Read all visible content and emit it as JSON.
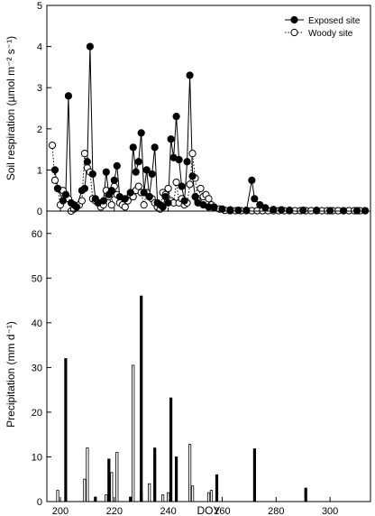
{
  "chart_data": [
    {
      "type": "line",
      "panel": "top",
      "ylabel": "Soil respiration (µmol m⁻² s⁻¹)",
      "ylim": [
        0,
        5
      ],
      "yticks": [
        0,
        1,
        2,
        3,
        4,
        5
      ],
      "xlim": [
        195,
        315
      ],
      "legend": "top-right",
      "series": [
        {
          "name": "Exposed site",
          "marker": "filled-circle",
          "line": "solid",
          "points": [
            [
              198,
              1.0
            ],
            [
              199,
              0.55
            ],
            [
              201,
              0.25
            ],
            [
              202,
              0.4
            ],
            [
              203,
              2.8
            ],
            [
              204,
              0.2
            ],
            [
              205,
              0.15
            ],
            [
              206,
              0.1
            ],
            [
              208,
              0.5
            ],
            [
              209,
              0.55
            ],
            [
              210,
              1.2
            ],
            [
              211,
              4.0
            ],
            [
              212,
              0.9
            ],
            [
              213,
              0.3
            ],
            [
              214,
              0.2
            ],
            [
              216,
              0.25
            ],
            [
              217,
              0.95
            ],
            [
              218,
              0.4
            ],
            [
              219,
              0.5
            ],
            [
              220,
              0.75
            ],
            [
              221,
              1.1
            ],
            [
              222,
              0.35
            ],
            [
              224,
              0.3
            ],
            [
              226,
              0.45
            ],
            [
              227,
              1.55
            ],
            [
              228,
              0.95
            ],
            [
              229,
              1.2
            ],
            [
              230,
              1.9
            ],
            [
              231,
              0.45
            ],
            [
              232,
              1.0
            ],
            [
              233,
              0.35
            ],
            [
              234,
              0.9
            ],
            [
              235,
              1.55
            ],
            [
              236,
              0.2
            ],
            [
              237,
              0.15
            ],
            [
              238,
              0.1
            ],
            [
              239,
              0.35
            ],
            [
              240,
              0.2
            ],
            [
              241,
              1.75
            ],
            [
              242,
              1.3
            ],
            [
              243,
              2.3
            ],
            [
              244,
              1.25
            ],
            [
              245,
              0.6
            ],
            [
              246,
              0.25
            ],
            [
              247,
              1.2
            ],
            [
              248,
              3.3
            ],
            [
              249,
              0.85
            ],
            [
              250,
              0.35
            ],
            [
              251,
              0.2
            ],
            [
              253,
              0.15
            ],
            [
              255,
              0.1
            ],
            [
              257,
              0.08
            ],
            [
              260,
              0.05
            ],
            [
              263,
              0.03
            ],
            [
              266,
              0.02
            ],
            [
              269,
              0.02
            ],
            [
              271,
              0.75
            ],
            [
              272,
              0.3
            ],
            [
              274,
              0.15
            ],
            [
              276,
              0.08
            ],
            [
              279,
              0.04
            ],
            [
              282,
              0.03
            ],
            [
              285,
              0.02
            ],
            [
              290,
              0.02
            ],
            [
              295,
              0.02
            ],
            [
              300,
              0.01
            ],
            [
              305,
              0.01
            ],
            [
              310,
              0.01
            ],
            [
              313,
              0.01
            ]
          ]
        },
        {
          "name": "Woody site",
          "marker": "open-circle",
          "line": "dotted",
          "points": [
            [
              197,
              1.6
            ],
            [
              198,
              0.75
            ],
            [
              199,
              0.55
            ],
            [
              200,
              0.15
            ],
            [
              201,
              0.5
            ],
            [
              202,
              0.4
            ],
            [
              203,
              0.3
            ],
            [
              204,
              0.0
            ],
            [
              205,
              0.05
            ],
            [
              206,
              0.1
            ],
            [
              207,
              0.15
            ],
            [
              208,
              0.25
            ],
            [
              209,
              1.4
            ],
            [
              210,
              1.05
            ],
            [
              211,
              0.95
            ],
            [
              212,
              0.3
            ],
            [
              213,
              0.25
            ],
            [
              214,
              0.2
            ],
            [
              215,
              0.1
            ],
            [
              216,
              0.15
            ],
            [
              217,
              0.5
            ],
            [
              218,
              0.35
            ],
            [
              219,
              0.15
            ],
            [
              220,
              0.6
            ],
            [
              221,
              0.4
            ],
            [
              222,
              0.2
            ],
            [
              223,
              0.15
            ],
            [
              224,
              0.1
            ],
            [
              225,
              0.25
            ],
            [
              226,
              0.4
            ],
            [
              227,
              0.35
            ],
            [
              228,
              0.5
            ],
            [
              229,
              0.6
            ],
            [
              230,
              0.45
            ],
            [
              231,
              0.15
            ],
            [
              232,
              0.45
            ],
            [
              233,
              0.35
            ],
            [
              234,
              0.3
            ],
            [
              235,
              0.2
            ],
            [
              236,
              0.1
            ],
            [
              237,
              0.05
            ],
            [
              238,
              0.45
            ],
            [
              239,
              0.4
            ],
            [
              240,
              0.55
            ],
            [
              241,
              0.25
            ],
            [
              242,
              0.2
            ],
            [
              243,
              0.7
            ],
            [
              244,
              0.2
            ],
            [
              245,
              0.3
            ],
            [
              246,
              0.15
            ],
            [
              247,
              0.2
            ],
            [
              248,
              0.65
            ],
            [
              249,
              1.4
            ],
            [
              250,
              0.8
            ],
            [
              251,
              0.25
            ],
            [
              252,
              0.55
            ],
            [
              253,
              0.35
            ],
            [
              254,
              0.4
            ],
            [
              255,
              0.3
            ],
            [
              256,
              0.15
            ],
            [
              257,
              0.1
            ],
            [
              259,
              0.05
            ],
            [
              261,
              0.02
            ],
            [
              263,
              0.01
            ],
            [
              265,
              0.01
            ],
            [
              267,
              0.01
            ],
            [
              269,
              0.01
            ],
            [
              271,
              0.01
            ],
            [
              273,
              0.01
            ],
            [
              275,
              0.01
            ],
            [
              277,
              0.01
            ],
            [
              279,
              0.01
            ],
            [
              281,
              0.01
            ],
            [
              283,
              0.01
            ],
            [
              285,
              0.01
            ],
            [
              287,
              0.01
            ],
            [
              289,
              0.01
            ],
            [
              291,
              0.01
            ],
            [
              293,
              0.01
            ],
            [
              295,
              0.01
            ],
            [
              297,
              0.01
            ],
            [
              299,
              0.01
            ],
            [
              301,
              0.01
            ],
            [
              303,
              0.01
            ],
            [
              305,
              0.01
            ],
            [
              307,
              0.01
            ],
            [
              309,
              0.01
            ],
            [
              311,
              0.01
            ],
            [
              313,
              0.01
            ]
          ]
        }
      ]
    },
    {
      "type": "bar",
      "panel": "bottom",
      "xlabel": "DOY",
      "ylabel": "Precipitation (mm d⁻¹)",
      "ylim": [
        0,
        65
      ],
      "yticks": [
        0,
        10,
        20,
        30,
        40,
        50,
        60
      ],
      "xlim": [
        195,
        315
      ],
      "xticks": [
        200,
        220,
        240,
        260,
        280,
        300
      ],
      "series": [
        {
          "style": "open",
          "bars": [
            [
              199,
              2.5
            ],
            [
              209,
              5.0
            ],
            [
              210,
              12.0
            ],
            [
              217,
              1.5
            ],
            [
              219,
              6.5
            ],
            [
              221,
              11.0
            ],
            [
              227,
              30.5
            ],
            [
              230,
              2.0
            ],
            [
              233,
              4.0
            ],
            [
              238,
              1.5
            ],
            [
              240,
              2.0
            ],
            [
              248,
              12.8
            ],
            [
              249,
              3.5
            ],
            [
              255,
              2.0
            ],
            [
              256,
              2.5
            ]
          ]
        },
        {
          "style": "filled",
          "bars": [
            [
              202,
              32.0
            ],
            [
              213,
              1.0
            ],
            [
              218,
              9.5
            ],
            [
              226,
              1.0
            ],
            [
              230,
              46.0
            ],
            [
              235,
              12.0
            ],
            [
              241,
              23.2
            ],
            [
              243,
              10.0
            ],
            [
              258,
              6.0
            ],
            [
              272,
              11.8
            ],
            [
              291,
              3.0
            ]
          ]
        }
      ]
    }
  ]
}
